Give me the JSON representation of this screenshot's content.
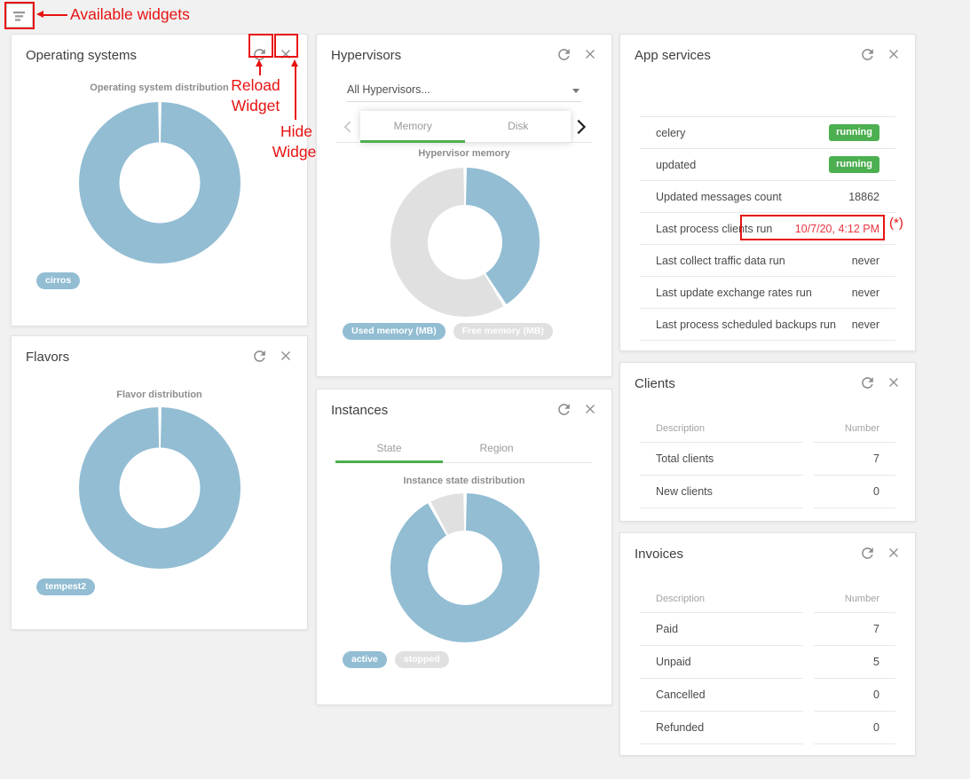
{
  "colors": {
    "accent_blue": "#92bdd3",
    "slice_gray": "#e0e0e0",
    "badge_green": "#4caf50",
    "tab_indicator_green": "#4caf50",
    "alert_red": "#e83540",
    "annotation_red": "#e81212"
  },
  "annotations": {
    "available_widgets_label": "Available widgets",
    "reload_widget_label": "Reload Widget",
    "hide_widget_label": "Hide Widget",
    "asterisk_note": "(*)"
  },
  "widgets": {
    "operating_systems": {
      "title": "Operating systems"
    },
    "hypervisors": {
      "title": "Hypervisors",
      "select_value": "All Hypervisors...",
      "tabs": [
        {
          "label": "Memory"
        },
        {
          "label": "Disk"
        }
      ]
    },
    "flavors": {
      "title": "Flavors"
    },
    "instances": {
      "title": "Instances",
      "tabs": [
        {
          "label": "State"
        },
        {
          "label": "Region"
        }
      ]
    },
    "app_services": {
      "title": "App services",
      "rows": [
        {
          "label": "celery",
          "value": "running",
          "style": "badge"
        },
        {
          "label": "updated",
          "value": "running",
          "style": "badge"
        },
        {
          "label": "Updated messages count",
          "value": "18862",
          "style": "text"
        },
        {
          "label": "Last process clients run",
          "value": "10/7/20, 4:12 PM",
          "style": "alert"
        },
        {
          "label": "Last collect traffic data run",
          "value": "never",
          "style": "text"
        },
        {
          "label": "Last update exchange rates run",
          "value": "never",
          "style": "text"
        },
        {
          "label": "Last process scheduled backups run",
          "value": "never",
          "style": "text"
        }
      ]
    },
    "clients": {
      "title": "Clients",
      "columns": [
        "Description",
        "Number"
      ],
      "rows": [
        [
          "Total clients",
          "7"
        ],
        [
          "New clients",
          "0"
        ]
      ]
    },
    "invoices": {
      "title": "Invoices",
      "columns": [
        "Description",
        "Number"
      ],
      "rows": [
        [
          "Paid",
          "7"
        ],
        [
          "Unpaid",
          "5"
        ],
        [
          "Cancelled",
          "0"
        ],
        [
          "Refunded",
          "0"
        ]
      ]
    }
  },
  "chart_data": [
    {
      "id": "os-distribution",
      "type": "pie",
      "title": "Operating system distribution",
      "labels": [
        "cirros"
      ],
      "values": [
        100
      ],
      "colors": [
        "#92bdd3"
      ],
      "legend_position": "bottom-left"
    },
    {
      "id": "hypervisor-memory",
      "type": "pie",
      "title": "Hypervisor memory",
      "labels": [
        "Used memory (MB)",
        "Free memory (MB)"
      ],
      "values": [
        41,
        59
      ],
      "colors": [
        "#92bdd3",
        "#e0e0e0"
      ],
      "legend_position": "bottom-left"
    },
    {
      "id": "flavor-distribution",
      "type": "pie",
      "title": "Flavor distribution",
      "labels": [
        "tempest2"
      ],
      "values": [
        100
      ],
      "colors": [
        "#92bdd3"
      ],
      "legend_position": "bottom-left"
    },
    {
      "id": "instance-state",
      "type": "pie",
      "title": "Instance state distribution",
      "labels": [
        "active",
        "stopped"
      ],
      "values": [
        92,
        8
      ],
      "colors": [
        "#92bdd3",
        "#e0e0e0"
      ],
      "legend_position": "bottom-left"
    }
  ]
}
